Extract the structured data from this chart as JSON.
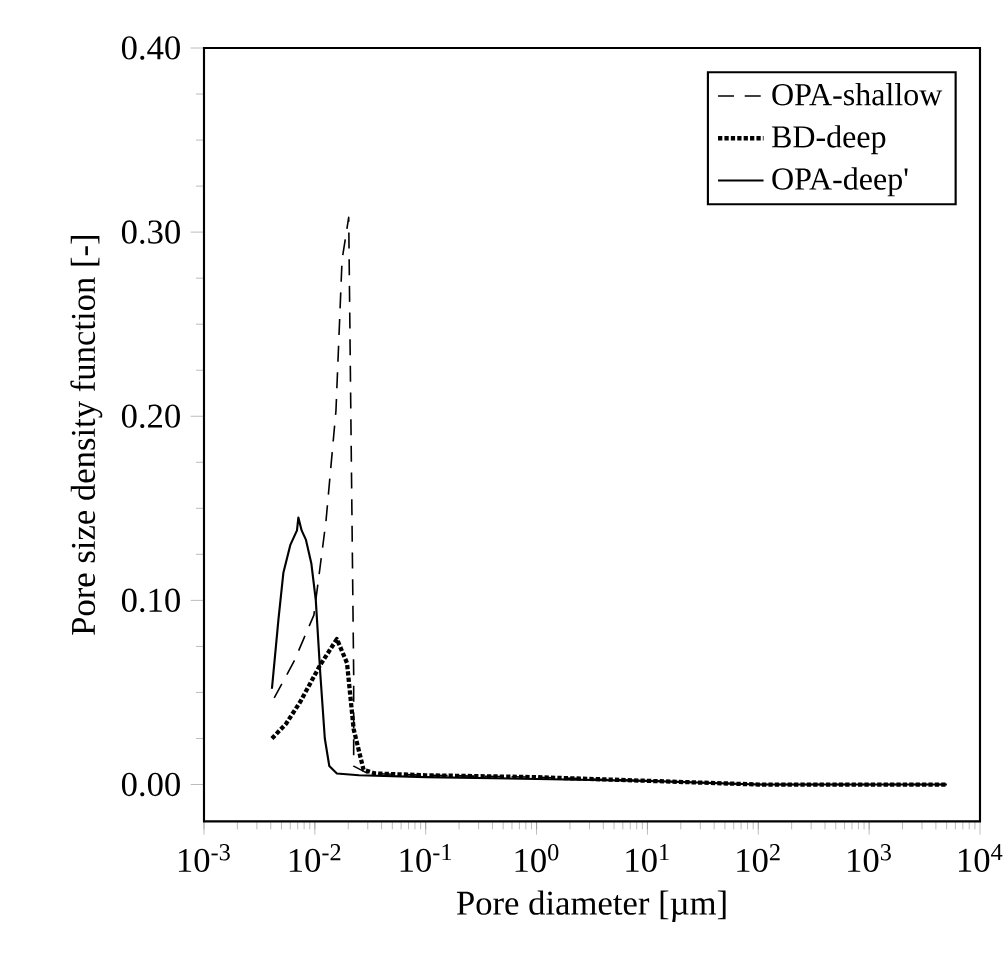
{
  "chart_data": {
    "type": "line",
    "xlabel": "Pore diameter [µm]",
    "ylabel": "Pore size density function [-]",
    "log": "x",
    "xlim": [
      0.001,
      10000
    ],
    "ylim": [
      -0.02,
      0.4
    ],
    "xticks": [
      {
        "value": 0.001,
        "label": "10$^{-3}$"
      },
      {
        "value": 0.01,
        "label": "10$^{-2}$"
      },
      {
        "value": 0.1,
        "label": "10$^{-1}$"
      },
      {
        "value": 1,
        "label": "10$^{0}$"
      },
      {
        "value": 10,
        "label": "10$^{1}$"
      },
      {
        "value": 100,
        "label": "10$^{2}$"
      },
      {
        "value": 1000,
        "label": "10$^{3}$"
      },
      {
        "value": 10000,
        "label": "10$^{4}$"
      }
    ],
    "yticks": [
      {
        "value": 0,
        "label": "0.00"
      },
      {
        "value": 0.1,
        "label": "0.10"
      },
      {
        "value": 0.2,
        "label": "0.20"
      },
      {
        "value": 0.3,
        "label": "0.30"
      },
      {
        "value": 0.4,
        "label": "0.40"
      }
    ],
    "legend": "top right",
    "grid": false,
    "series": [
      {
        "name": "OPA-shallow",
        "color": "#000000",
        "line_style": "dashed",
        "x": [
          0.0043,
          0.0065,
          0.0098,
          0.0126,
          0.0155,
          0.0176,
          0.0202,
          0.0224,
          0.0224,
          0.03,
          0.1,
          1,
          10,
          100,
          1000,
          5000
        ],
        "values": [
          0.047,
          0.067,
          0.092,
          0.143,
          0.203,
          0.285,
          0.308,
          0.06,
          0.01,
          0.006,
          0.005,
          0.004,
          0.002,
          0.0,
          0.0,
          0.0
        ]
      },
      {
        "name": "BD-deep",
        "color": "#000000",
        "line_style": "dotted",
        "x": [
          0.0041,
          0.0055,
          0.0074,
          0.0112,
          0.0158,
          0.0195,
          0.0224,
          0.0275,
          0.035,
          0.1,
          1,
          10,
          100,
          1000,
          5000
        ],
        "values": [
          0.025,
          0.033,
          0.045,
          0.065,
          0.079,
          0.066,
          0.03,
          0.008,
          0.006,
          0.005,
          0.004,
          0.002,
          0.0,
          0.0,
          0.0
        ]
      },
      {
        "name": "OPA-deep'",
        "color": "#000000",
        "line_style": "solid",
        "x": [
          0.0041,
          0.0047,
          0.0052,
          0.006,
          0.0069,
          0.0071,
          0.0076,
          0.0083,
          0.0093,
          0.0102,
          0.0112,
          0.0123,
          0.0135,
          0.0158,
          0.025,
          0.1,
          1,
          10,
          100,
          1000,
          5000
        ],
        "values": [
          0.052,
          0.09,
          0.115,
          0.13,
          0.138,
          0.145,
          0.138,
          0.133,
          0.12,
          0.1,
          0.06,
          0.025,
          0.01,
          0.006,
          0.005,
          0.004,
          0.003,
          0.002,
          0.0,
          0.0,
          0.0
        ]
      }
    ]
  }
}
